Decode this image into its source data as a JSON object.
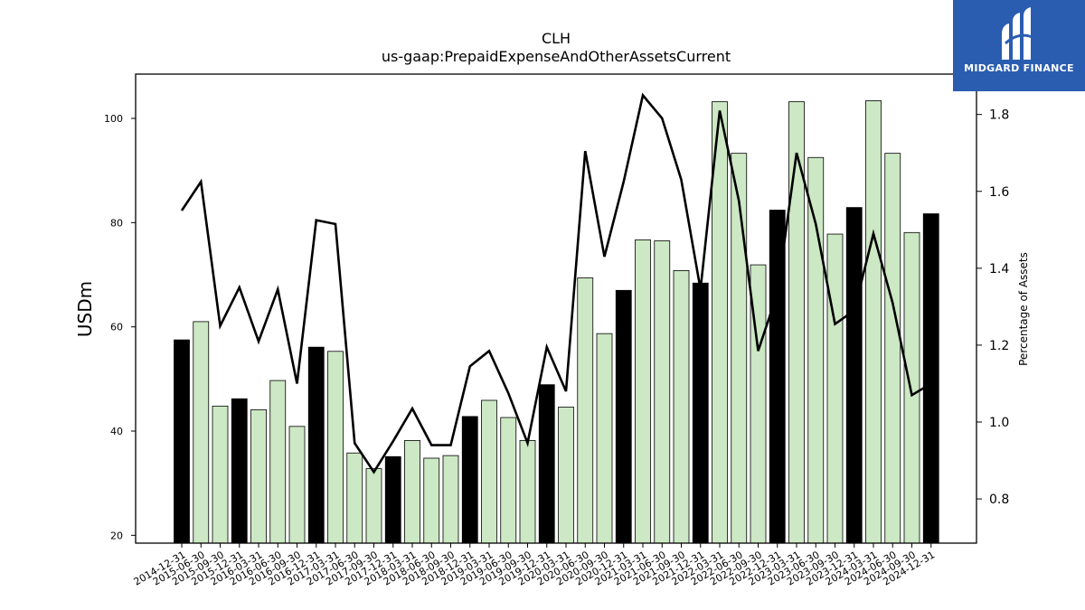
{
  "chart_data": {
    "type": "bar",
    "title": "CLH",
    "subtitle": "us-gaap:PrepaidExpenseAndOtherAssetsCurrent",
    "ylabel": "USDm",
    "y2label": "Percentage of Assets",
    "ylim": [
      18.5,
      108.5
    ],
    "y2lim": [
      0.685,
      1.905
    ],
    "yticks": [
      20,
      40,
      60,
      80,
      100
    ],
    "y2ticks": [
      "0.8",
      "1.0",
      "1.2",
      "1.4",
      "1.6",
      "1.8"
    ],
    "categories": [
      "2014-12-31",
      "2015-06-30",
      "2015-09-30",
      "2015-12-31",
      "2016-03-31",
      "2016-06-30",
      "2016-09-30",
      "2016-12-31",
      "2017-03-31",
      "2017-06-30",
      "2017-09-30",
      "2017-12-31",
      "2018-03-31",
      "2018-06-30",
      "2018-09-30",
      "2018-12-31",
      "2019-03-31",
      "2019-06-30",
      "2019-09-30",
      "2019-12-31",
      "2020-03-31",
      "2020-06-30",
      "2020-09-30",
      "2020-12-31",
      "2021-03-31",
      "2021-06-30",
      "2021-09-30",
      "2021-12-31",
      "2022-03-31",
      "2022-06-30",
      "2022-09-30",
      "2022-12-31",
      "2023-03-31",
      "2023-06-30",
      "2023-09-30",
      "2023-12-31",
      "2024-03-31",
      "2024-06-30",
      "2024-09-30",
      "2024-12-31"
    ],
    "series": [
      {
        "kind": "bar",
        "values": [
          57.5,
          61.0,
          44.8,
          46.2,
          44.1,
          49.7,
          40.9,
          56.1,
          55.3,
          35.8,
          32.8,
          35.1,
          38.2,
          34.8,
          35.3,
          42.8,
          45.9,
          42.6,
          38.2,
          48.9,
          44.6,
          69.4,
          58.7,
          67.0,
          76.7,
          76.5,
          70.8,
          68.4,
          103.2,
          93.3,
          71.9,
          82.4,
          103.2,
          92.5,
          77.8,
          82.9,
          103.4,
          93.3,
          78.1,
          81.7
        ],
        "year_end_color": "#000000",
        "quarter_color": "#cce8c4"
      },
      {
        "kind": "line",
        "axis": "right",
        "color": "#000000",
        "values": [
          1.55,
          1.625,
          1.25,
          1.35,
          1.21,
          1.345,
          1.1,
          1.525,
          1.515,
          0.945,
          0.87,
          0.95,
          1.035,
          0.94,
          0.94,
          1.145,
          1.185,
          1.075,
          0.945,
          1.195,
          1.08,
          1.705,
          1.43,
          1.625,
          1.85,
          1.79,
          1.63,
          1.345,
          1.81,
          1.575,
          1.185,
          1.335,
          1.7,
          1.515,
          1.255,
          1.29,
          1.49,
          1.31,
          1.07,
          1.1
        ]
      }
    ],
    "grid": false,
    "legend": "none"
  },
  "logo": {
    "text": "MIDGARD FINANCE",
    "bg": "#2a5db0"
  }
}
